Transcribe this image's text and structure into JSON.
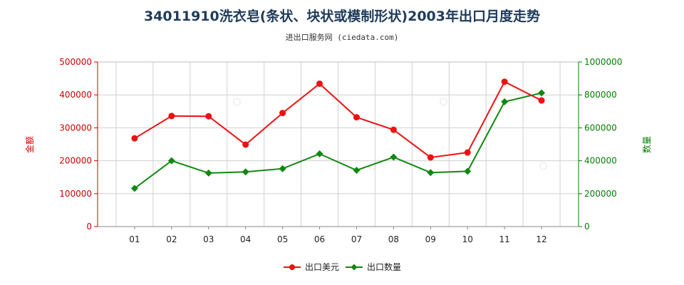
{
  "chart_data": {
    "type": "line",
    "title": "34011910洗衣皂(条状、块状或模制形状)2003年出口月度走势",
    "subtitle": "进出口服务网 (ciedata.com)",
    "categories": [
      "01",
      "02",
      "03",
      "04",
      "05",
      "06",
      "07",
      "08",
      "09",
      "10",
      "11",
      "12"
    ],
    "series": [
      {
        "name": "出口美元",
        "axis": "left",
        "color": "#ee1111",
        "values": [
          268000,
          336000,
          335000,
          249000,
          345000,
          434000,
          332000,
          294000,
          210000,
          225000,
          440000,
          383000
        ]
      },
      {
        "name": "出口数量",
        "axis": "right",
        "color": "#118811",
        "values": [
          232000,
          400000,
          325000,
          332000,
          352000,
          442000,
          342000,
          422000,
          328000,
          336000,
          758000,
          812000
        ]
      }
    ],
    "ylabel_left": "金额",
    "ylabel_right": "数量",
    "ylim_left": [
      0,
      500000
    ],
    "ylim_right": [
      0,
      1000000
    ],
    "yticks_left": [
      "0",
      "100000",
      "200000",
      "300000",
      "400000",
      "500000"
    ],
    "yticks_right": [
      "0",
      "200000",
      "400000",
      "600000",
      "800000",
      "1000000"
    ],
    "left_axis_color": "#cc0000",
    "right_axis_color": "#008000",
    "grid": true,
    "legend_position": "bottom-center"
  }
}
